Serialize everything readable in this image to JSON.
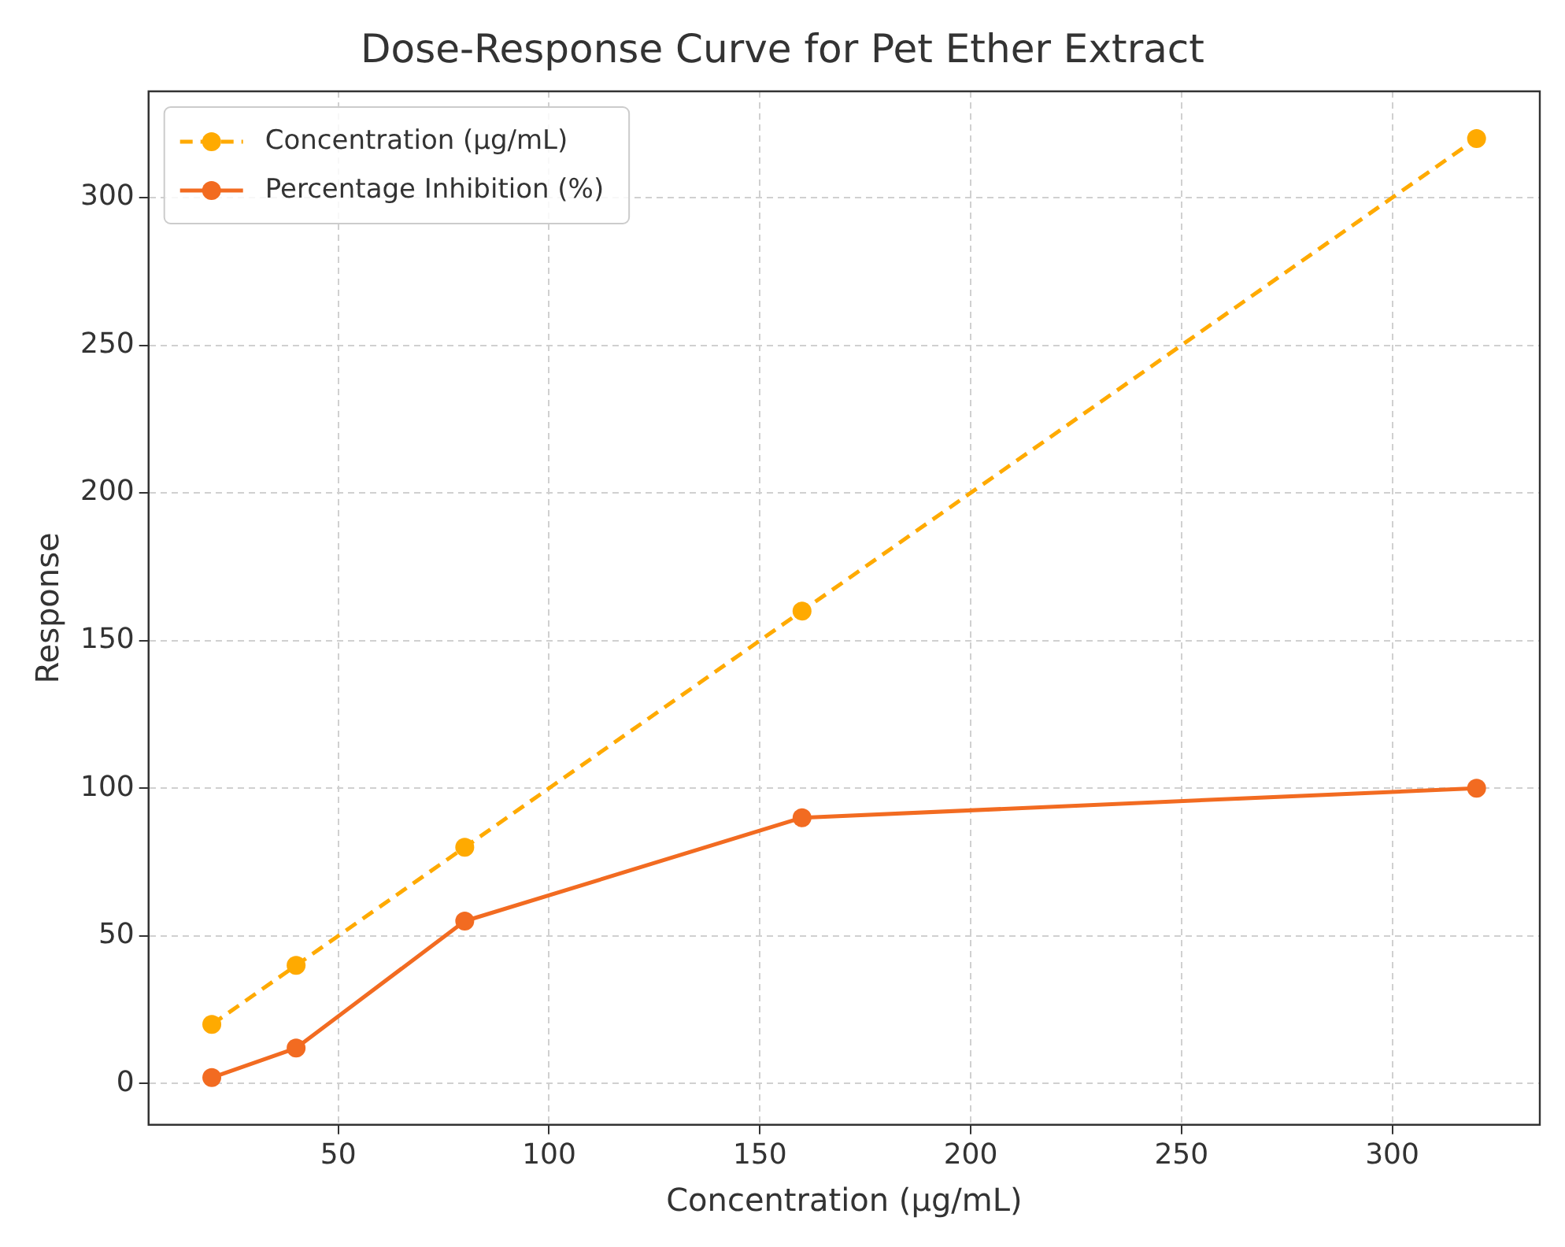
{
  "chart_data": {
    "type": "line",
    "title": "Dose-Response Curve for Pet Ether Extract",
    "xlabel": "Concentration (µg/mL)",
    "ylabel": "Response",
    "x": [
      20,
      40,
      80,
      160,
      320
    ],
    "series": [
      {
        "name": "Concentration (µg/mL)",
        "color": "#ffaa00",
        "values": [
          20,
          40,
          80,
          160,
          320
        ],
        "line_style": "dashed"
      },
      {
        "name": "Percentage Inhibition (%)",
        "color": "#f26b21",
        "values": [
          2,
          12,
          55,
          90,
          100
        ],
        "line_style": "solid"
      }
    ],
    "xlim": [
      5,
      335
    ],
    "xticks": [
      50,
      100,
      150,
      200,
      250,
      300
    ],
    "ylim": [
      -14,
      336
    ],
    "yticks": [
      0,
      50,
      100,
      150,
      200,
      250,
      300
    ],
    "grid": true,
    "legend": "top left",
    "marker": "circle"
  }
}
